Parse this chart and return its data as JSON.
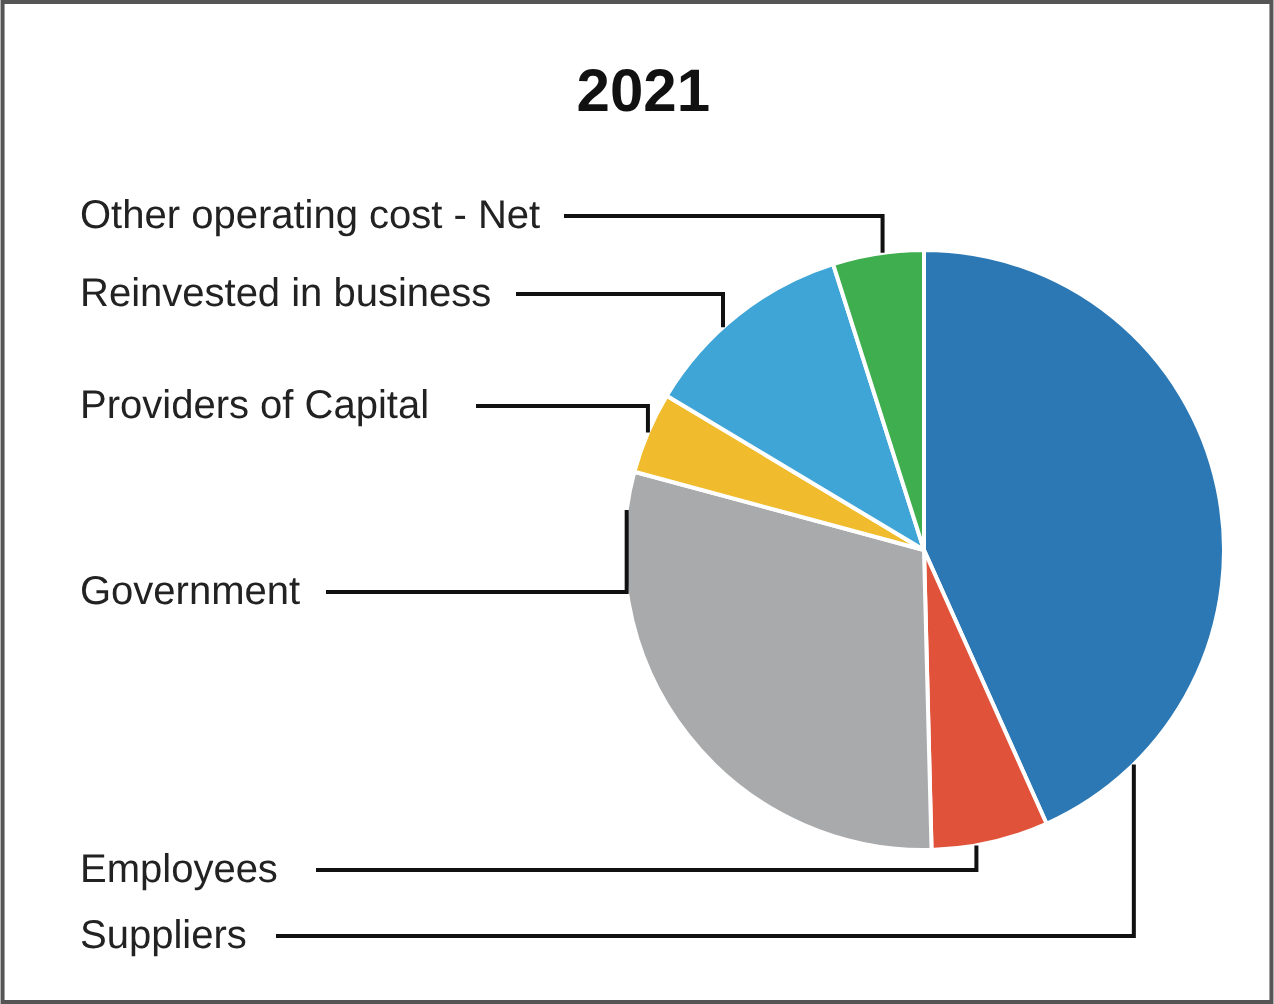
{
  "chart_data": {
    "type": "pie",
    "title": "2021",
    "categories": [
      "Suppliers",
      "Employees",
      "Government",
      "Providers of Capital",
      "Reinvested in business",
      "Other operating cost - Net"
    ],
    "values": [
      43.3,
      6.3,
      29.6,
      4.4,
      11.5,
      4.9
    ],
    "colors": [
      "#2b78b4",
      "#e0533a",
      "#a9aaac",
      "#f0bc2e",
      "#3fa5d6",
      "#3fae4f"
    ],
    "legend": false
  }
}
